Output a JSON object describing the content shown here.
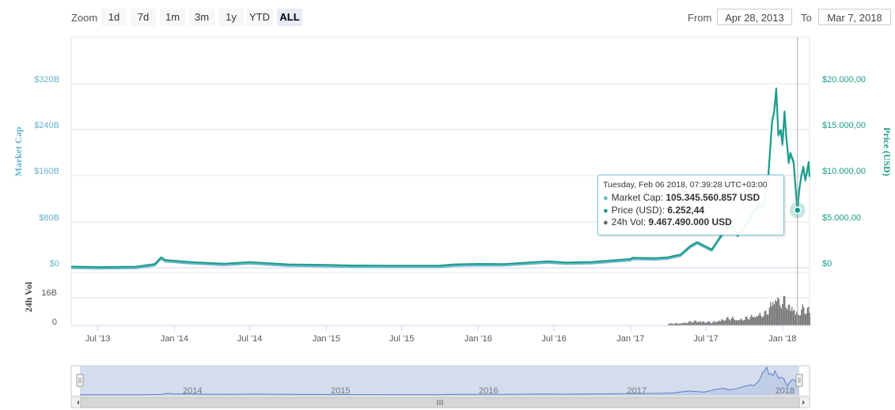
{
  "zoom": {
    "label": "Zoom",
    "buttons": [
      "1d",
      "7d",
      "1m",
      "3m",
      "1y",
      "YTD",
      "ALL"
    ],
    "active": "ALL"
  },
  "range": {
    "from_label": "From",
    "from_value": "Apr 28, 2013",
    "to_label": "To",
    "to_value": "Mar 7, 2018"
  },
  "tooltip": {
    "date": "Tuesday, Feb 06 2018, 07:39:28 UTC+03:00",
    "market_cap_label": "Market Cap:",
    "market_cap_value": "105.345.560.857 USD",
    "price_label": "Price (USD):",
    "price_value": "6.252,44",
    "vol_label": "24h Vol:",
    "vol_value": "9.467.490.000 USD"
  },
  "colors": {
    "market_cap": "#66b3cc",
    "price": "#1a9c85",
    "volume": "#666666",
    "navigator_fill": "#ccd6eb",
    "navigator_line": "#5a7fc4"
  },
  "chart_data": {
    "type": "line",
    "x_ticks": [
      "Jul '13",
      "Jan '14",
      "Jul '14",
      "Jan '15",
      "Jul '15",
      "Jan '16",
      "Jul '16",
      "Jan '17",
      "Jul '17",
      "Jan '18"
    ],
    "left_axis": {
      "label": "Market Cap",
      "ticks": [
        "$0",
        "$80B",
        "$160B",
        "$240B",
        "$320B"
      ],
      "range": [
        0,
        320
      ]
    },
    "right_axis": {
      "label": "Price (USD)",
      "ticks": [
        "$0",
        "$5.000,00",
        "$10.000,00",
        "$15.000,00",
        "$20.000,00"
      ],
      "range": [
        0,
        20000
      ]
    },
    "volume_axis": {
      "label": "24h Vol",
      "ticks": [
        "0",
        "16B"
      ]
    },
    "navigator_years": [
      "2014",
      "2015",
      "2016",
      "2017",
      "2018"
    ],
    "series": [
      {
        "name": "Price (USD)",
        "x": [
          "2013-04-28",
          "2013-07-01",
          "2013-10-01",
          "2013-11-15",
          "2013-11-30",
          "2013-12-10",
          "2014-01-01",
          "2014-02-01",
          "2014-03-01",
          "2014-05-01",
          "2014-07-01",
          "2014-10-01",
          "2015-01-01",
          "2015-03-01",
          "2015-06-01",
          "2015-08-01",
          "2015-10-01",
          "2015-11-05",
          "2016-01-01",
          "2016-03-01",
          "2016-06-15",
          "2016-08-01",
          "2016-10-01",
          "2017-01-01",
          "2017-01-05",
          "2017-03-01",
          "2017-04-01",
          "2017-05-01",
          "2017-05-25",
          "2017-06-10",
          "2017-07-15",
          "2017-08-15",
          "2017-09-01",
          "2017-09-15",
          "2017-10-01",
          "2017-10-20",
          "2017-11-08",
          "2017-11-15",
          "2017-11-28",
          "2017-12-07",
          "2017-12-12",
          "2017-12-17",
          "2017-12-22",
          "2017-12-28",
          "2018-01-01",
          "2018-01-06",
          "2018-01-10",
          "2018-01-16",
          "2018-01-20",
          "2018-01-28",
          "2018-02-01",
          "2018-02-06",
          "2018-02-10",
          "2018-02-15",
          "2018-02-20",
          "2018-02-25",
          "2018-03-01",
          "2018-03-05",
          "2018-03-07"
        ],
        "values": [
          135,
          90,
          130,
          420,
          1150,
          850,
          770,
          650,
          580,
          450,
          620,
          380,
          320,
          260,
          230,
          240,
          250,
          380,
          430,
          410,
          700,
          580,
          640,
          960,
          1100,
          1050,
          1150,
          1450,
          2400,
          2800,
          2000,
          4100,
          4700,
          3600,
          4300,
          5900,
          7100,
          6500,
          10000,
          16000,
          17000,
          19500,
          14500,
          15000,
          13500,
          17000,
          14500,
          11500,
          12500,
          11500,
          9000,
          6250,
          8500,
          10000,
          11000,
          9600,
          10500,
          11500,
          10000
        ]
      }
    ]
  }
}
